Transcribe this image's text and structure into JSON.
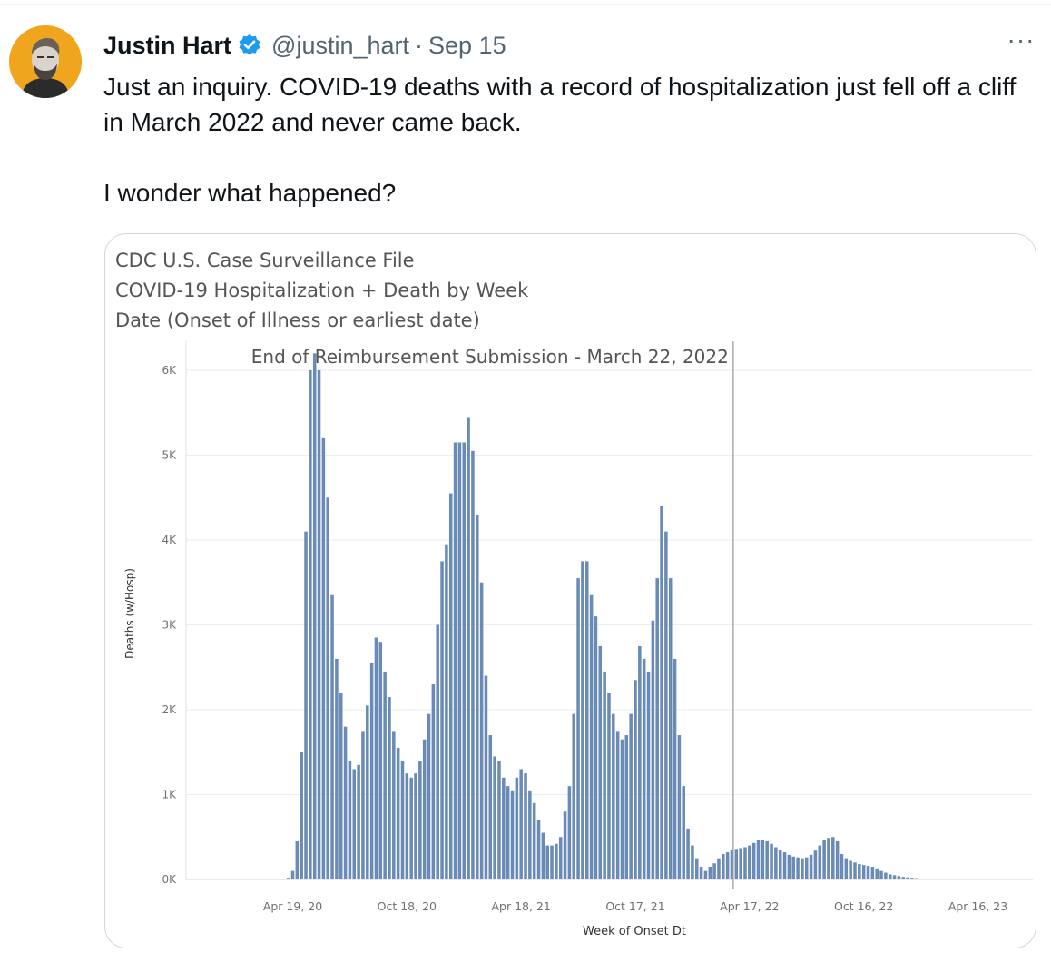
{
  "tweet": {
    "author_name": "Justin Hart",
    "handle": "@justin_hart",
    "separator": "·",
    "date": "Sep 15",
    "more_label": "···",
    "text_line1": "Just an inquiry. COVID-19 deaths with a record of hospitalization just fell off a cliff in March 2022 and never came back.",
    "text_line2": "I wonder what happened?",
    "icons": {
      "avatar": "avatar-portrait",
      "verified": "verified-badge-icon",
      "more": "more-options-icon"
    },
    "colors": {
      "verified": "#1d9bf0",
      "avatar_bg": "#f0a51f",
      "bar": "#6a8bb5"
    }
  },
  "chart_data": {
    "type": "bar",
    "title_lines": [
      "CDC U.S. Case Surveillance File",
      "COVID-19 Hospitalization + Death by Week",
      "Date (Onset of Illness or earliest date)"
    ],
    "annotation": "End of Reimbursement Submission - March 22, 2022",
    "annotation_date": "2022-03-22",
    "xlabel": "Week of Onset Dt",
    "ylabel": "Deaths (w/Hosp)",
    "ylim": [
      0,
      6400
    ],
    "yticks": [
      {
        "value": 0,
        "label": "0K"
      },
      {
        "value": 1000,
        "label": "1K"
      },
      {
        "value": 2000,
        "label": "2K"
      },
      {
        "value": 3000,
        "label": "3K"
      },
      {
        "value": 4000,
        "label": "4K"
      },
      {
        "value": 5000,
        "label": "5K"
      },
      {
        "value": 6000,
        "label": "6K"
      }
    ],
    "xticks": [
      {
        "date": "2020-04-19",
        "label": "Apr 19, 20"
      },
      {
        "date": "2020-10-18",
        "label": "Oct 18, 20"
      },
      {
        "date": "2021-04-18",
        "label": "Apr 18, 21"
      },
      {
        "date": "2021-10-17",
        "label": "Oct 17, 21"
      },
      {
        "date": "2022-04-17",
        "label": "Apr 17, 22"
      },
      {
        "date": "2022-10-16",
        "label": "Oct 16, 22"
      },
      {
        "date": "2023-04-16",
        "label": "Apr 16, 23"
      }
    ],
    "grid": true,
    "x_start": "2019-12-29",
    "values": [
      0,
      0,
      0,
      0,
      0,
      0,
      0,
      0,
      0,
      0,
      0,
      10,
      5,
      10,
      10,
      20,
      100,
      450,
      1500,
      4100,
      6000,
      6200,
      6000,
      5200,
      4500,
      3350,
      2600,
      2200,
      1800,
      1400,
      1300,
      1350,
      1750,
      2050,
      2550,
      2850,
      2800,
      2450,
      2150,
      1750,
      1550,
      1400,
      1250,
      1200,
      1250,
      1400,
      1650,
      1950,
      2300,
      3000,
      3750,
      3950,
      4550,
      5150,
      5150,
      5150,
      5450,
      5050,
      4300,
      3500,
      2400,
      1700,
      1450,
      1400,
      1200,
      1100,
      1050,
      1200,
      1300,
      1250,
      1050,
      900,
      700,
      550,
      400,
      400,
      420,
      500,
      800,
      1100,
      1950,
      3550,
      3750,
      3750,
      3350,
      3100,
      2750,
      2450,
      2200,
      1950,
      1750,
      1650,
      1700,
      1950,
      2350,
      2750,
      2600,
      2450,
      3050,
      3550,
      4400,
      4100,
      3550,
      2600,
      1700,
      1100,
      600,
      400,
      250,
      150,
      100,
      150,
      190,
      250,
      300,
      320,
      350,
      360,
      370,
      380,
      400,
      430,
      460,
      470,
      450,
      420,
      380,
      350,
      320,
      290,
      270,
      260,
      250,
      260,
      290,
      340,
      400,
      470,
      490,
      500,
      450,
      300,
      250,
      220,
      200,
      180,
      170,
      160,
      150,
      130,
      100,
      80,
      60,
      50,
      40,
      30,
      25,
      20,
      15,
      10,
      8
    ]
  }
}
